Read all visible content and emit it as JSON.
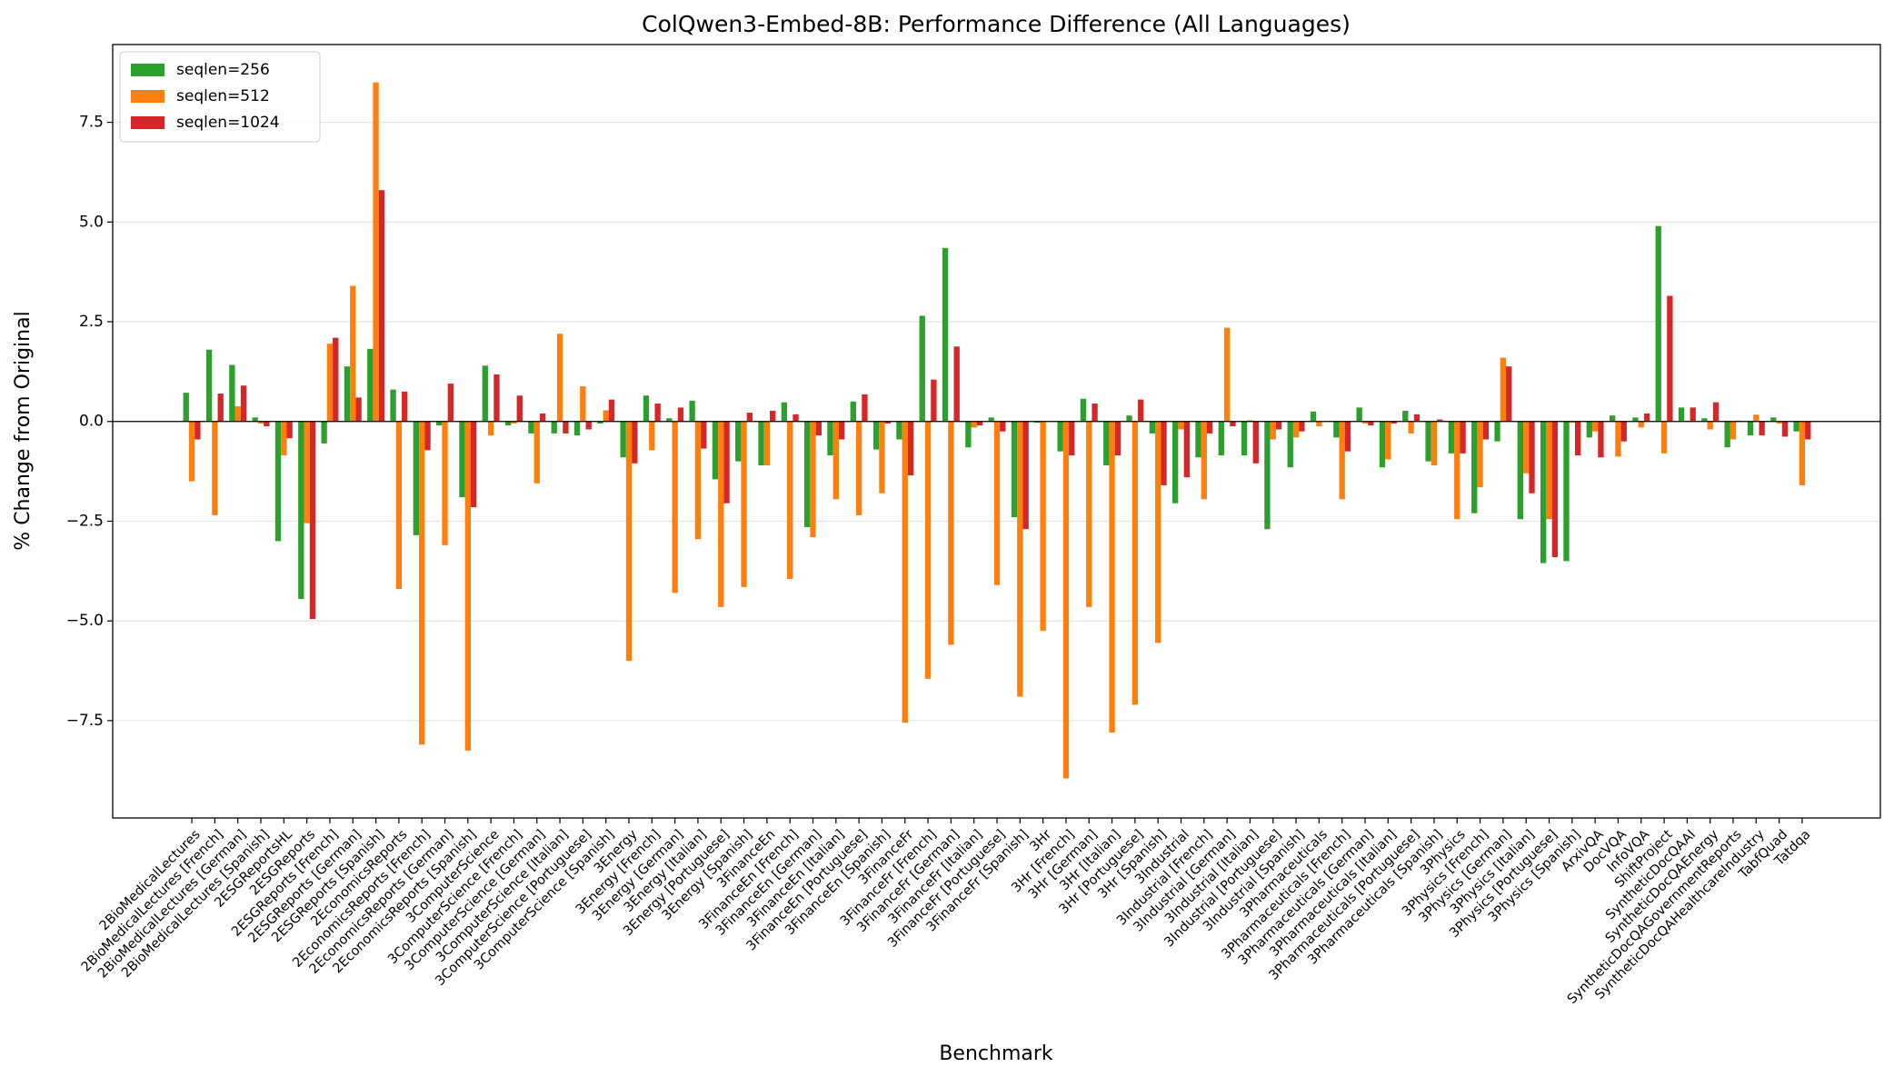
{
  "chart_data": {
    "type": "bar",
    "title": "ColQwen3-Embed-8B: Performance Difference (All Languages)",
    "x_label": "Benchmark",
    "y_label": "% Change from Original",
    "categories": [
      "2BioMedicalLectures",
      "2BioMedicalLectures [French]",
      "2BioMedicalLectures [German]",
      "2BioMedicalLectures [Spanish]",
      "2ESGReportsHL",
      "2ESGReports",
      "2ESGReports [French]",
      "2ESGReports [German]",
      "2ESGReports [Spanish]",
      "2EconomicsReports",
      "2EconomicsReports [French]",
      "2EconomicsReports [German]",
      "2EconomicsReports [Spanish]",
      "3ComputerScience",
      "3ComputerScience [French]",
      "3ComputerScience [German]",
      "3ComputerScience [Italian]",
      "3ComputerScience [Portuguese]",
      "3ComputerScience [Spanish]",
      "3Energy",
      "3Energy [French]",
      "3Energy [German]",
      "3Energy [Italian]",
      "3Energy [Portuguese]",
      "3Energy [Spanish]",
      "3FinanceEn",
      "3FinanceEn [French]",
      "3FinanceEn [German]",
      "3FinanceEn [Italian]",
      "3FinanceEn [Portuguese]",
      "3FinanceEn [Spanish]",
      "3FinanceFr",
      "3FinanceFr [French]",
      "3FinanceFr [German]",
      "3FinanceFr [Italian]",
      "3FinanceFr [Portuguese]",
      "3FinanceFr [Spanish]",
      "3Hr",
      "3Hr [French]",
      "3Hr [German]",
      "3Hr [Italian]",
      "3Hr [Portuguese]",
      "3Hr [Spanish]",
      "3Industrial",
      "3Industrial [French]",
      "3Industrial [German]",
      "3Industrial [Italian]",
      "3Industrial [Portuguese]",
      "3Industrial [Spanish]",
      "3Pharmaceuticals",
      "3Pharmaceuticals [French]",
      "3Pharmaceuticals [German]",
      "3Pharmaceuticals [Italian]",
      "3Pharmaceuticals [Portuguese]",
      "3Pharmaceuticals [Spanish]",
      "3Physics",
      "3Physics [French]",
      "3Physics [German]",
      "3Physics [Italian]",
      "3Physics [Portuguese]",
      "3Physics [Spanish]",
      "ArxivQA",
      "DocVQA",
      "InfoVQA",
      "ShiftProject",
      "SyntheticDocQAAI",
      "SyntheticDocQAEnergy",
      "SyntheticDocQAGovernmentReports",
      "SyntheticDocQAHealthcareIndustry",
      "TabfQuad",
      "Tatdqa"
    ],
    "series": [
      {
        "name": "seqlen=256",
        "color": "#2ca02c",
        "values": [
          0.72,
          1.8,
          1.42,
          0.1,
          -3.0,
          -4.45,
          -0.55,
          1.38,
          1.82,
          0.8,
          -2.85,
          -0.1,
          -1.9,
          1.4,
          -0.1,
          -0.3,
          -0.3,
          -0.35,
          -0.05,
          -0.9,
          0.65,
          0.08,
          0.52,
          -1.45,
          -1.0,
          -1.1,
          0.48,
          -2.65,
          -0.85,
          0.5,
          -0.7,
          -0.45,
          2.65,
          4.35,
          -0.65,
          0.1,
          -2.4,
          -0.03,
          -0.75,
          0.57,
          -1.1,
          0.15,
          -0.3,
          -2.05,
          -0.9,
          -0.85,
          -0.85,
          -2.7,
          -1.15,
          0.25,
          -0.4,
          0.35,
          -1.15,
          0.27,
          -1.0,
          -0.8,
          -2.3,
          -0.5,
          -2.45,
          -3.55,
          -3.5,
          -0.4,
          0.15,
          0.1,
          4.9,
          0.35,
          0.08,
          -0.65,
          -0.35,
          0.1,
          -0.25
        ]
      },
      {
        "name": "seqlen=512",
        "color": "#ff7f0e",
        "values": [
          -1.5,
          -2.35,
          0.38,
          -0.05,
          -0.85,
          -2.55,
          1.95,
          3.4,
          8.5,
          -4.2,
          -8.1,
          -3.1,
          -8.25,
          -0.35,
          -0.05,
          -1.55,
          2.2,
          0.88,
          0.28,
          -6.0,
          -0.72,
          -4.3,
          -2.95,
          -4.65,
          -4.15,
          -1.1,
          -3.95,
          -2.9,
          -1.95,
          -2.35,
          -1.8,
          -7.55,
          -6.45,
          -5.6,
          -0.15,
          -4.1,
          -6.9,
          -5.25,
          -8.95,
          -4.65,
          -7.8,
          -7.1,
          -5.55,
          -0.2,
          -1.95,
          2.35,
          0.03,
          -0.45,
          -0.4,
          -0.12,
          -1.95,
          -0.05,
          -0.95,
          -0.3,
          -1.1,
          -2.45,
          -1.65,
          1.6,
          -1.3,
          -2.45,
          -0.03,
          -0.25,
          -0.88,
          -0.15,
          -0.8,
          0.02,
          -0.2,
          -0.45,
          0.17,
          -0.05,
          -1.6
        ]
      },
      {
        "name": "seqlen=1024",
        "color": "#d62728",
        "values": [
          -0.45,
          0.7,
          0.9,
          -0.12,
          -0.42,
          -4.95,
          2.1,
          0.6,
          5.8,
          0.75,
          -0.72,
          0.95,
          -2.15,
          1.18,
          0.65,
          0.2,
          -0.3,
          -0.2,
          0.55,
          -1.05,
          0.45,
          0.35,
          -0.68,
          -2.05,
          0.22,
          0.27,
          0.18,
          -0.35,
          -0.45,
          0.68,
          -0.05,
          -1.35,
          1.05,
          1.88,
          -0.1,
          -0.25,
          -2.7,
          0,
          -0.85,
          0.45,
          -0.85,
          0.55,
          -1.6,
          -1.4,
          -0.3,
          -0.12,
          -1.05,
          -0.2,
          -0.25,
          0,
          -0.75,
          -0.1,
          -0.05,
          0.18,
          0.05,
          -0.8,
          -0.45,
          1.38,
          -1.8,
          -3.4,
          -0.85,
          -0.9,
          -0.5,
          0.2,
          3.15,
          0.35,
          0.48,
          0.02,
          -0.35,
          -0.38,
          -0.45
        ]
      }
    ],
    "ylim": [
      -9.94,
      9.45
    ],
    "yticks": [
      {
        "value": -7.5,
        "label": "−7.5"
      },
      {
        "value": -5,
        "label": "−5.0"
      },
      {
        "value": -2.5,
        "label": "−2.5"
      },
      {
        "value": 0,
        "label": "0.0"
      },
      {
        "value": 2.5,
        "label": "2.5"
      },
      {
        "value": 5,
        "label": "5.0"
      },
      {
        "value": 7.5,
        "label": "7.5"
      }
    ],
    "grid": true,
    "legend": "upper left"
  }
}
